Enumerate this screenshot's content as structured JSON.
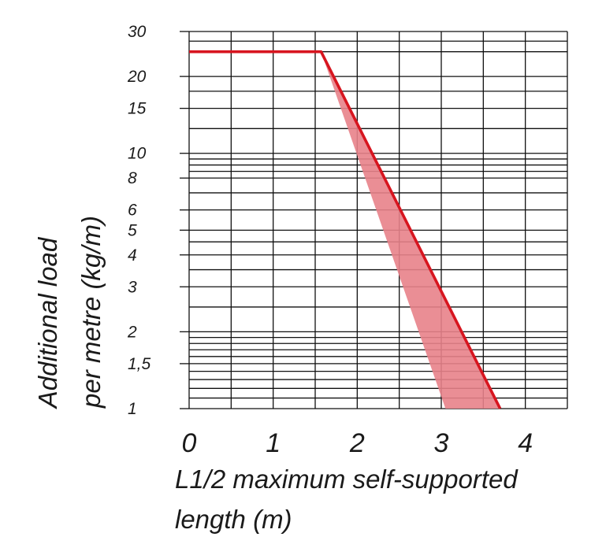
{
  "chart_data": {
    "type": "line",
    "title": "",
    "xlabel": [
      "L1/2 maximum self-supported",
      "length (m)"
    ],
    "ylabel": [
      "Additional load",
      "per metre (kg/m)"
    ],
    "xlim": [
      0,
      4.5
    ],
    "ylim": [
      1,
      30
    ],
    "yscale": "log",
    "grid": true,
    "x_ticks": [
      {
        "value": 0,
        "label": "0"
      },
      {
        "value": 1,
        "label": "1"
      },
      {
        "value": 2,
        "label": "2"
      },
      {
        "value": 3,
        "label": "3"
      },
      {
        "value": 4,
        "label": "4"
      }
    ],
    "y_ticks": [
      {
        "value": 1,
        "label": "1"
      },
      {
        "value": 1.5,
        "label": "1,5"
      },
      {
        "value": 2,
        "label": "2"
      },
      {
        "value": 3,
        "label": "3"
      },
      {
        "value": 4,
        "label": "4"
      },
      {
        "value": 5,
        "label": "5"
      },
      {
        "value": 6,
        "label": "6"
      },
      {
        "value": 8,
        "label": "8"
      },
      {
        "value": 10,
        "label": "10"
      },
      {
        "value": 15,
        "label": "15"
      },
      {
        "value": 20,
        "label": "20"
      },
      {
        "value": 30,
        "label": "30"
      }
    ],
    "y_gridlines": [
      1,
      1.1,
      1.2,
      1.3,
      1.4,
      1.5,
      1.6,
      1.7,
      1.8,
      1.9,
      2,
      2.5,
      3,
      3.5,
      4,
      4.5,
      5,
      6,
      7,
      8,
      8.5,
      9,
      9.5,
      10,
      12.5,
      15,
      17.5,
      20,
      25,
      27.5,
      30
    ],
    "x_gridlines": [
      0,
      0.5,
      1,
      1.5,
      2,
      2.5,
      3,
      3.5,
      4,
      4.5
    ],
    "series": [
      {
        "color": "#d7151f",
        "x": [
          0,
          1.57,
          3.7
        ],
        "y": [
          25,
          25,
          1
        ]
      }
    ],
    "shaded_band": {
      "color": "#e8828a",
      "upper_x": [
        1.57,
        3.7
      ],
      "upper_y": [
        25,
        1
      ],
      "lower_x": [
        1.57,
        3.05
      ],
      "lower_y": [
        25,
        1
      ]
    }
  }
}
